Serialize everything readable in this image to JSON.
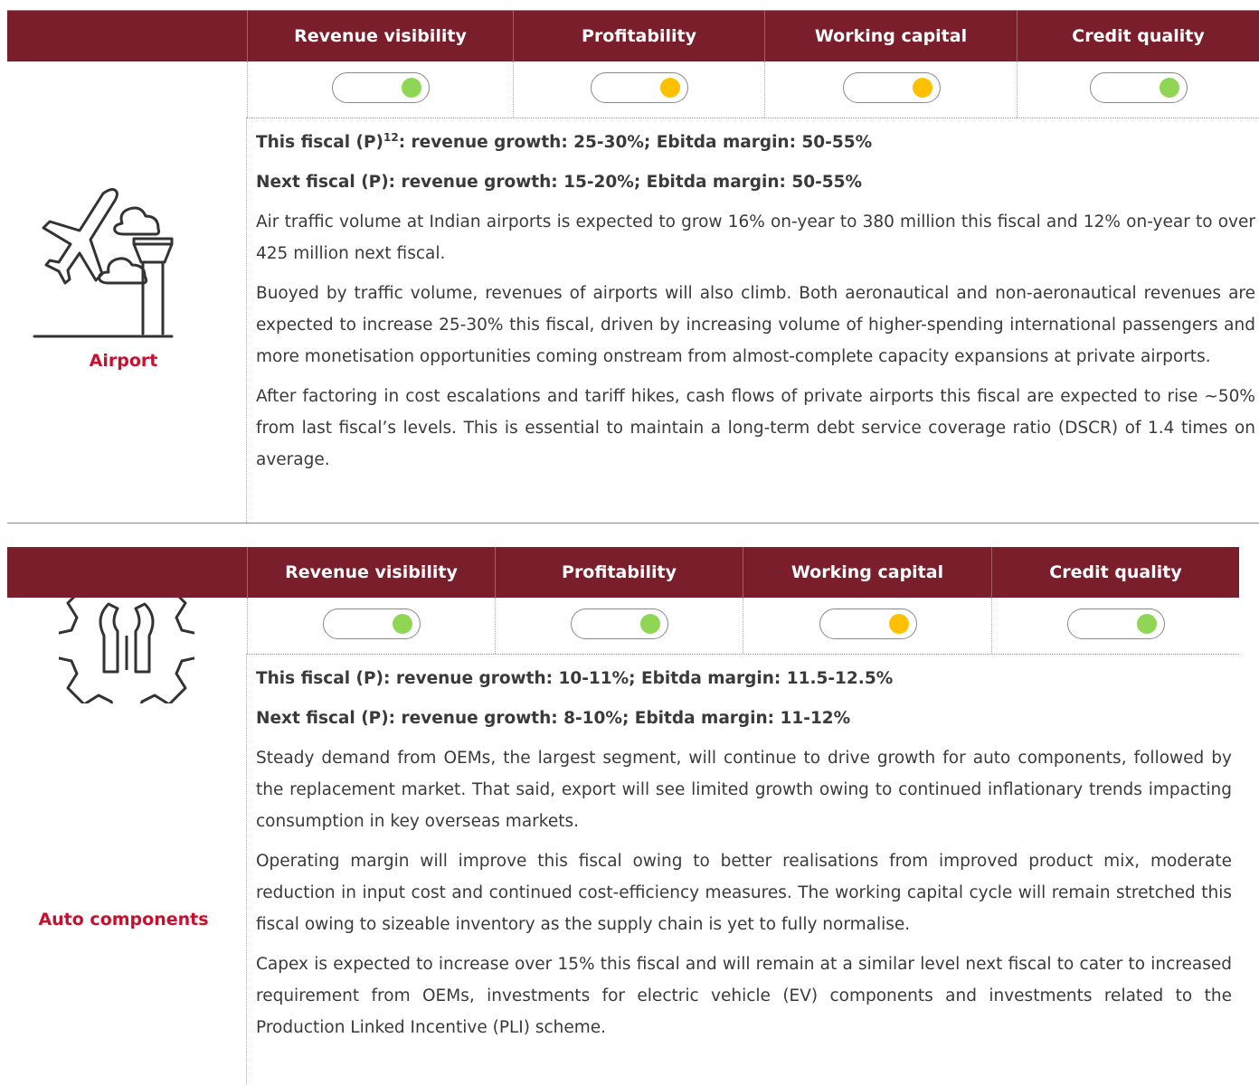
{
  "sections": [
    {
      "name": "Airport",
      "headers": [
        "Revenue visibility",
        "Profitability",
        "Working capital",
        "Credit quality"
      ],
      "indicators": [
        "#8ed653",
        "#ffc000",
        "#ffc000",
        "#8ed653"
      ],
      "highlights": [
        {
          "lead": "This fiscal (P)",
          "note": "12",
          "text": ": revenue growth: 25-30%; Ebitda margin: 50-55%"
        },
        {
          "text": "Next fiscal (P): revenue growth: 15-20%; Ebitda margin: 50-55%"
        }
      ],
      "paragraphs": [
        "Air traffic volume at Indian airports is expected to grow 16% on-year to 380 million this fiscal and 12% on-year to over 425 million next fiscal.",
        "Buoyed by traffic volume, revenues of airports will also climb. Both aeronautical and non-aeronautical revenues are expected to increase 25-30% this fiscal, driven by increasing volume of higher-spending international passengers and more monetisation opportunities coming onstream from almost-complete capacity expansions at private airports.",
        "After factoring in cost escalations and tariff hikes, cash flows of private airports this fiscal are expected to rise ~50% from last fiscal’s levels. This is essential to maintain a long-term debt service coverage ratio (DSCR) of 1.4 times on average."
      ]
    },
    {
      "name": "Auto components",
      "headers": [
        "Revenue visibility",
        "Profitability",
        "Working capital",
        "Credit quality"
      ],
      "indicators": [
        "#8ed653",
        "#8ed653",
        "#ffc000",
        "#8ed653"
      ],
      "highlights": [
        {
          "text": "This fiscal (P): revenue growth: 10-11%; Ebitda margin: 11.5-12.5%"
        },
        {
          "text": "Next fiscal (P): revenue growth: 8-10%; Ebitda margin: 11-12%"
        }
      ],
      "paragraphs": [
        "Steady demand from OEMs, the largest segment, will continue to drive growth for auto components, followed by the replacement market. That said, export will see limited growth owing to continued inflationary trends impacting consumption in key overseas markets.",
        "Operating margin will improve this fiscal owing to better realisations from improved product mix, moderate reduction in input cost and continued cost-efficiency measures. The working capital cycle will remain stretched this fiscal owing to sizeable inventory as the supply chain is yet to fully normalise.",
        "Capex is expected to increase over 15% this fiscal and will remain at a similar level next fiscal to cater to increased requirement from OEMs, investments for electric vehicle (EV) components and investments related to the Production Linked Incentive (PLI) scheme."
      ]
    }
  ]
}
